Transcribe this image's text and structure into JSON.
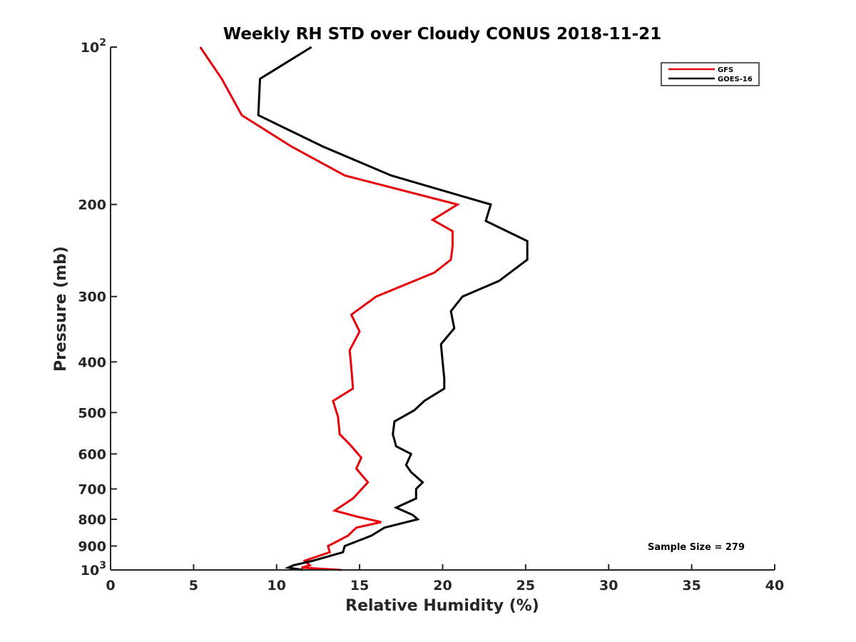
{
  "chart_data": {
    "type": "line",
    "title": "Weekly RH STD over Cloudy CONUS 2018-11-21",
    "xlabel": "Relative Humidity (%)",
    "ylabel": "Pressure (mb)",
    "xlim": [
      0,
      40
    ],
    "ylim": [
      100,
      1000
    ],
    "y_scale": "log",
    "y_reversed": true,
    "grid": false,
    "legend_position": "top-right",
    "x_ticks": [
      0,
      5,
      10,
      15,
      20,
      25,
      30,
      35,
      40
    ],
    "x_tick_labels": [
      "0",
      "5",
      "10",
      "15",
      "20",
      "25",
      "30",
      "35",
      "40"
    ],
    "y_ticks": [
      100,
      200,
      300,
      400,
      500,
      600,
      700,
      800,
      900,
      1000
    ],
    "y_tick_labels": [
      {
        "base": "10",
        "exp": "2"
      },
      {
        "base": "200",
        "exp": ""
      },
      {
        "base": "300",
        "exp": ""
      },
      {
        "base": "400",
        "exp": ""
      },
      {
        "base": "500",
        "exp": ""
      },
      {
        "base": "600",
        "exp": ""
      },
      {
        "base": "700",
        "exp": ""
      },
      {
        "base": "800",
        "exp": ""
      },
      {
        "base": "900",
        "exp": ""
      },
      {
        "base": "10",
        "exp": "3"
      }
    ],
    "annotation": "Sample Size = 279",
    "series": [
      {
        "name": "GFS",
        "color": "#e8000b",
        "points": [
          [
            5.4,
            100
          ],
          [
            6.7,
            115
          ],
          [
            7.9,
            135
          ],
          [
            10.9,
            155
          ],
          [
            14.1,
            176
          ],
          [
            20.9,
            200
          ],
          [
            19.4,
            214
          ],
          [
            20.6,
            225
          ],
          [
            20.6,
            240
          ],
          [
            20.5,
            255
          ],
          [
            19.5,
            270
          ],
          [
            16.0,
            300
          ],
          [
            14.5,
            325
          ],
          [
            15.0,
            350
          ],
          [
            14.4,
            380
          ],
          [
            14.5,
            410
          ],
          [
            14.6,
            450
          ],
          [
            13.4,
            475
          ],
          [
            13.7,
            510
          ],
          [
            13.8,
            550
          ],
          [
            14.4,
            575
          ],
          [
            15.1,
            610
          ],
          [
            14.8,
            640
          ],
          [
            15.5,
            680
          ],
          [
            14.6,
            730
          ],
          [
            13.5,
            770
          ],
          [
            14.8,
            790
          ],
          [
            16.3,
            810
          ],
          [
            14.8,
            830
          ],
          [
            14.3,
            860
          ],
          [
            13.1,
            900
          ],
          [
            13.2,
            925
          ],
          [
            11.7,
            960
          ],
          [
            12.0,
            980
          ],
          [
            11.5,
            990
          ],
          [
            13.9,
            1000
          ]
        ]
      },
      {
        "name": "GOES-16",
        "color": "#000000",
        "points": [
          [
            12.1,
            100
          ],
          [
            9.0,
            115
          ],
          [
            8.9,
            135
          ],
          [
            12.8,
            155
          ],
          [
            16.9,
            176
          ],
          [
            22.9,
            200
          ],
          [
            22.6,
            215
          ],
          [
            25.1,
            235
          ],
          [
            25.1,
            255
          ],
          [
            23.4,
            280
          ],
          [
            21.2,
            300
          ],
          [
            20.5,
            320
          ],
          [
            20.7,
            345
          ],
          [
            19.9,
            370
          ],
          [
            20.0,
            400
          ],
          [
            20.1,
            430
          ],
          [
            20.1,
            450
          ],
          [
            18.9,
            475
          ],
          [
            18.3,
            495
          ],
          [
            17.1,
            520
          ],
          [
            17.0,
            550
          ],
          [
            17.2,
            580
          ],
          [
            18.1,
            600
          ],
          [
            17.8,
            630
          ],
          [
            18.1,
            650
          ],
          [
            18.8,
            680
          ],
          [
            18.4,
            700
          ],
          [
            18.4,
            730
          ],
          [
            17.2,
            760
          ],
          [
            18.2,
            785
          ],
          [
            18.5,
            800
          ],
          [
            16.5,
            830
          ],
          [
            15.7,
            860
          ],
          [
            14.1,
            900
          ],
          [
            14.0,
            925
          ],
          [
            12.2,
            960
          ],
          [
            11.0,
            980
          ],
          [
            10.7,
            990
          ],
          [
            11.6,
            1000
          ]
        ]
      }
    ]
  }
}
